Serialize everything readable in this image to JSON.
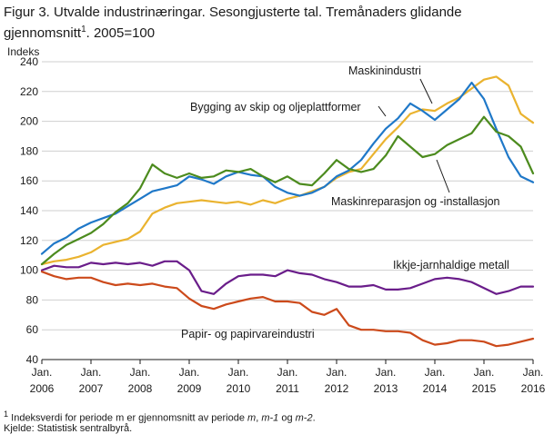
{
  "figure": {
    "title": "Figur 3. Utvalde industrinæringar. Sesongjusterte tal. Tremånaders glidande gjennomsnitt",
    "title_sup": "1",
    "title_tail": ". 2005=100",
    "footnote_sup": "1",
    "footnote_text": " Indeksverdi for periode m er gjennomsnitt av periode ",
    "footnote_m": "m",
    "footnote_sep1": ", ",
    "footnote_m1": "m-1",
    "footnote_og": " og ",
    "footnote_m2": "m-2",
    "footnote_end": ".",
    "source": "Kjelde: Statistisk sentralbyrå."
  },
  "chart_data": {
    "type": "line",
    "title": "Figur 3. Utvalde industrinæringar. Sesongjusterte tal. Tremånaders glidande gjennomsnitt. 2005=100",
    "ylabel": "Indeks",
    "ylim": [
      40,
      240
    ],
    "yticks": [
      40,
      60,
      80,
      100,
      120,
      140,
      160,
      180,
      200,
      220,
      240
    ],
    "xlim": [
      2006.0,
      2016.0
    ],
    "xticks": [
      {
        "top": "Jan.",
        "bottom": "2006",
        "x": 2006
      },
      {
        "top": "Jan.",
        "bottom": "2007",
        "x": 2007
      },
      {
        "top": "Jan.",
        "bottom": "2008",
        "x": 2008
      },
      {
        "top": "Jan.",
        "bottom": "2009",
        "x": 2009
      },
      {
        "top": "Jan.",
        "bottom": "2010",
        "x": 2010
      },
      {
        "top": "Jan.",
        "bottom": "2011",
        "x": 2011
      },
      {
        "top": "Jan.",
        "bottom": "2012",
        "x": 2012
      },
      {
        "top": "Jan.",
        "bottom": "2013",
        "x": 2013
      },
      {
        "top": "Jan.",
        "bottom": "2014",
        "x": 2014
      },
      {
        "top": "Jan.",
        "bottom": "2015",
        "x": 2015
      },
      {
        "top": "Jan.",
        "bottom": "2016",
        "x": 2016
      }
    ],
    "grid": true,
    "series": [
      {
        "name": "Maskinindustri",
        "color": "#eab32f",
        "points": [
          [
            2006.0,
            104
          ],
          [
            2006.25,
            106
          ],
          [
            2006.5,
            107
          ],
          [
            2006.75,
            109
          ],
          [
            2007.0,
            112
          ],
          [
            2007.25,
            117
          ],
          [
            2007.5,
            119
          ],
          [
            2007.75,
            121
          ],
          [
            2008.0,
            126
          ],
          [
            2008.25,
            138
          ],
          [
            2008.5,
            142
          ],
          [
            2008.75,
            145
          ],
          [
            2009.0,
            146
          ],
          [
            2009.25,
            147
          ],
          [
            2009.5,
            146
          ],
          [
            2009.75,
            145
          ],
          [
            2010.0,
            146
          ],
          [
            2010.25,
            144
          ],
          [
            2010.5,
            147
          ],
          [
            2010.75,
            145
          ],
          [
            2011.0,
            148
          ],
          [
            2011.25,
            150
          ],
          [
            2011.5,
            153
          ],
          [
            2011.75,
            156
          ],
          [
            2012.0,
            162
          ],
          [
            2012.25,
            166
          ],
          [
            2012.5,
            168
          ],
          [
            2012.75,
            178
          ],
          [
            2013.0,
            188
          ],
          [
            2013.25,
            196
          ],
          [
            2013.5,
            205
          ],
          [
            2013.75,
            208
          ],
          [
            2014.0,
            207
          ],
          [
            2014.25,
            212
          ],
          [
            2014.5,
            216
          ],
          [
            2014.75,
            222
          ],
          [
            2015.0,
            228
          ],
          [
            2015.25,
            230
          ],
          [
            2015.5,
            224
          ],
          [
            2015.75,
            205
          ],
          [
            2016.0,
            199
          ]
        ]
      },
      {
        "name": "Bygging av skip og oljeplattformer",
        "color": "#1f78c8",
        "points": [
          [
            2006.0,
            111
          ],
          [
            2006.25,
            118
          ],
          [
            2006.5,
            122
          ],
          [
            2006.75,
            128
          ],
          [
            2007.0,
            132
          ],
          [
            2007.25,
            135
          ],
          [
            2007.5,
            138
          ],
          [
            2007.75,
            143
          ],
          [
            2008.0,
            148
          ],
          [
            2008.25,
            153
          ],
          [
            2008.5,
            155
          ],
          [
            2008.75,
            157
          ],
          [
            2009.0,
            163
          ],
          [
            2009.25,
            161
          ],
          [
            2009.5,
            158
          ],
          [
            2009.75,
            163
          ],
          [
            2010.0,
            166
          ],
          [
            2010.25,
            164
          ],
          [
            2010.5,
            163
          ],
          [
            2010.75,
            156
          ],
          [
            2011.0,
            152
          ],
          [
            2011.25,
            150
          ],
          [
            2011.5,
            152
          ],
          [
            2011.75,
            156
          ],
          [
            2012.0,
            163
          ],
          [
            2012.25,
            167
          ],
          [
            2012.5,
            174
          ],
          [
            2012.75,
            185
          ],
          [
            2013.0,
            195
          ],
          [
            2013.25,
            202
          ],
          [
            2013.5,
            212
          ],
          [
            2013.75,
            207
          ],
          [
            2014.0,
            201
          ],
          [
            2014.25,
            208
          ],
          [
            2014.5,
            215
          ],
          [
            2014.75,
            226
          ],
          [
            2015.0,
            215
          ],
          [
            2015.25,
            195
          ],
          [
            2015.5,
            176
          ],
          [
            2015.75,
            163
          ],
          [
            2016.0,
            159
          ]
        ]
      },
      {
        "name": "Maskinreparasjon og -installasjon",
        "color": "#4c8b1e",
        "points": [
          [
            2006.0,
            104
          ],
          [
            2006.25,
            111
          ],
          [
            2006.5,
            117
          ],
          [
            2006.75,
            121
          ],
          [
            2007.0,
            125
          ],
          [
            2007.25,
            131
          ],
          [
            2007.5,
            139
          ],
          [
            2007.75,
            145
          ],
          [
            2008.0,
            155
          ],
          [
            2008.25,
            171
          ],
          [
            2008.5,
            165
          ],
          [
            2008.75,
            162
          ],
          [
            2009.0,
            165
          ],
          [
            2009.25,
            162
          ],
          [
            2009.5,
            163
          ],
          [
            2009.75,
            167
          ],
          [
            2010.0,
            166
          ],
          [
            2010.25,
            168
          ],
          [
            2010.5,
            163
          ],
          [
            2010.75,
            159
          ],
          [
            2011.0,
            163
          ],
          [
            2011.25,
            158
          ],
          [
            2011.5,
            157
          ],
          [
            2011.75,
            165
          ],
          [
            2012.0,
            174
          ],
          [
            2012.25,
            168
          ],
          [
            2012.5,
            166
          ],
          [
            2012.75,
            168
          ],
          [
            2013.0,
            177
          ],
          [
            2013.25,
            190
          ],
          [
            2013.5,
            183
          ],
          [
            2013.75,
            176
          ],
          [
            2014.0,
            178
          ],
          [
            2014.25,
            184
          ],
          [
            2014.5,
            188
          ],
          [
            2014.75,
            192
          ],
          [
            2015.0,
            203
          ],
          [
            2015.25,
            193
          ],
          [
            2015.5,
            190
          ],
          [
            2015.75,
            183
          ],
          [
            2016.0,
            165
          ]
        ]
      },
      {
        "name": "Ikkje-jarnhaldige metall",
        "color": "#6a1d8a",
        "points": [
          [
            2006.0,
            100
          ],
          [
            2006.25,
            103
          ],
          [
            2006.5,
            102
          ],
          [
            2006.75,
            102
          ],
          [
            2007.0,
            105
          ],
          [
            2007.25,
            104
          ],
          [
            2007.5,
            105
          ],
          [
            2007.75,
            104
          ],
          [
            2008.0,
            105
          ],
          [
            2008.25,
            103
          ],
          [
            2008.5,
            106
          ],
          [
            2008.75,
            106
          ],
          [
            2009.0,
            100
          ],
          [
            2009.25,
            86
          ],
          [
            2009.5,
            84
          ],
          [
            2009.75,
            91
          ],
          [
            2010.0,
            96
          ],
          [
            2010.25,
            97
          ],
          [
            2010.5,
            97
          ],
          [
            2010.75,
            96
          ],
          [
            2011.0,
            100
          ],
          [
            2011.25,
            98
          ],
          [
            2011.5,
            97
          ],
          [
            2011.75,
            94
          ],
          [
            2012.0,
            92
          ],
          [
            2012.25,
            89
          ],
          [
            2012.5,
            89
          ],
          [
            2012.75,
            90
          ],
          [
            2013.0,
            87
          ],
          [
            2013.25,
            87
          ],
          [
            2013.5,
            88
          ],
          [
            2013.75,
            91
          ],
          [
            2014.0,
            94
          ],
          [
            2014.25,
            95
          ],
          [
            2014.5,
            94
          ],
          [
            2014.75,
            92
          ],
          [
            2015.0,
            88
          ],
          [
            2015.25,
            84
          ],
          [
            2015.5,
            86
          ],
          [
            2015.75,
            89
          ],
          [
            2016.0,
            89
          ]
        ]
      },
      {
        "name": "Papir- og papirvareindustri",
        "color": "#cc4a1b",
        "points": [
          [
            2006.0,
            99
          ],
          [
            2006.25,
            96
          ],
          [
            2006.5,
            94
          ],
          [
            2006.75,
            95
          ],
          [
            2007.0,
            95
          ],
          [
            2007.25,
            92
          ],
          [
            2007.5,
            90
          ],
          [
            2007.75,
            91
          ],
          [
            2008.0,
            90
          ],
          [
            2008.25,
            91
          ],
          [
            2008.5,
            89
          ],
          [
            2008.75,
            88
          ],
          [
            2009.0,
            81
          ],
          [
            2009.25,
            76
          ],
          [
            2009.5,
            74
          ],
          [
            2009.75,
            77
          ],
          [
            2010.0,
            79
          ],
          [
            2010.25,
            81
          ],
          [
            2010.5,
            82
          ],
          [
            2010.75,
            79
          ],
          [
            2011.0,
            79
          ],
          [
            2011.25,
            78
          ],
          [
            2011.5,
            72
          ],
          [
            2011.75,
            70
          ],
          [
            2012.0,
            74
          ],
          [
            2012.25,
            63
          ],
          [
            2012.5,
            60
          ],
          [
            2012.75,
            60
          ],
          [
            2013.0,
            59
          ],
          [
            2013.25,
            59
          ],
          [
            2013.5,
            58
          ],
          [
            2013.75,
            53
          ],
          [
            2014.0,
            50
          ],
          [
            2014.25,
            51
          ],
          [
            2014.5,
            53
          ],
          [
            2014.75,
            53
          ],
          [
            2015.0,
            52
          ],
          [
            2015.25,
            49
          ],
          [
            2015.5,
            50
          ],
          [
            2015.75,
            52
          ],
          [
            2016.0,
            54
          ]
        ]
      }
    ],
    "labels": {
      "maskinindustri": "Maskinindustri",
      "skip": "Bygging av skip og oljeplattformer",
      "maskinreparasjon": "Maskinreparasjon  og -installasjon",
      "ikkje_jarn": "Ikkje-jarnhaldige  metall",
      "papir": "Papir- og papirvareindustri"
    }
  }
}
